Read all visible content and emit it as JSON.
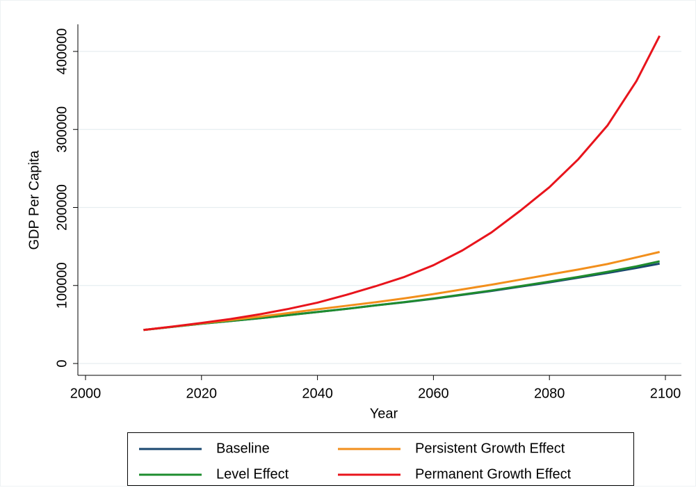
{
  "chart_data": {
    "type": "line",
    "x_label": "Year",
    "y_label": "GDP Per Capita",
    "x": [
      2010,
      2015,
      2020,
      2025,
      2030,
      2035,
      2040,
      2045,
      2050,
      2055,
      2060,
      2065,
      2070,
      2075,
      2080,
      2085,
      2090,
      2095,
      2099
    ],
    "series": [
      {
        "name": "Baseline",
        "color": "#1a476f",
        "values": [
          43000,
          47000,
          51000,
          54500,
          58000,
          62000,
          66000,
          70000,
          74500,
          78500,
          83000,
          88000,
          93000,
          98500,
          104000,
          110000,
          116000,
          122500,
          128000
        ]
      },
      {
        "name": "Level Effect",
        "color": "#1e8c2e",
        "values": [
          43000,
          47000,
          51000,
          54500,
          58000,
          62000,
          66000,
          70000,
          74500,
          78700,
          83300,
          88400,
          93600,
          99200,
          105000,
          111000,
          117500,
          124500,
          131000
        ]
      },
      {
        "name": "Persistent Growth Effect",
        "color": "#f28f1c",
        "values": [
          43000,
          47200,
          51500,
          55700,
          60000,
          64700,
          69500,
          74000,
          78500,
          83500,
          89000,
          95000,
          101000,
          107500,
          114000,
          120500,
          127500,
          136000,
          143000
        ]
      },
      {
        "name": "Permanent Growth Effect",
        "color": "#e8141c",
        "values": [
          43000,
          47300,
          52000,
          57000,
          63000,
          70000,
          78000,
          88000,
          99000,
          111000,
          126000,
          145000,
          168000,
          196000,
          226000,
          262000,
          305000,
          362000,
          420000
        ]
      }
    ],
    "xlim": [
      2000,
      2100
    ],
    "xticks": [
      2000,
      2020,
      2040,
      2060,
      2080,
      2100
    ],
    "ylim": [
      0,
      400000
    ],
    "yticks": [
      0,
      100000,
      200000,
      300000,
      400000
    ],
    "grid": true,
    "legend_position": "bottom"
  }
}
